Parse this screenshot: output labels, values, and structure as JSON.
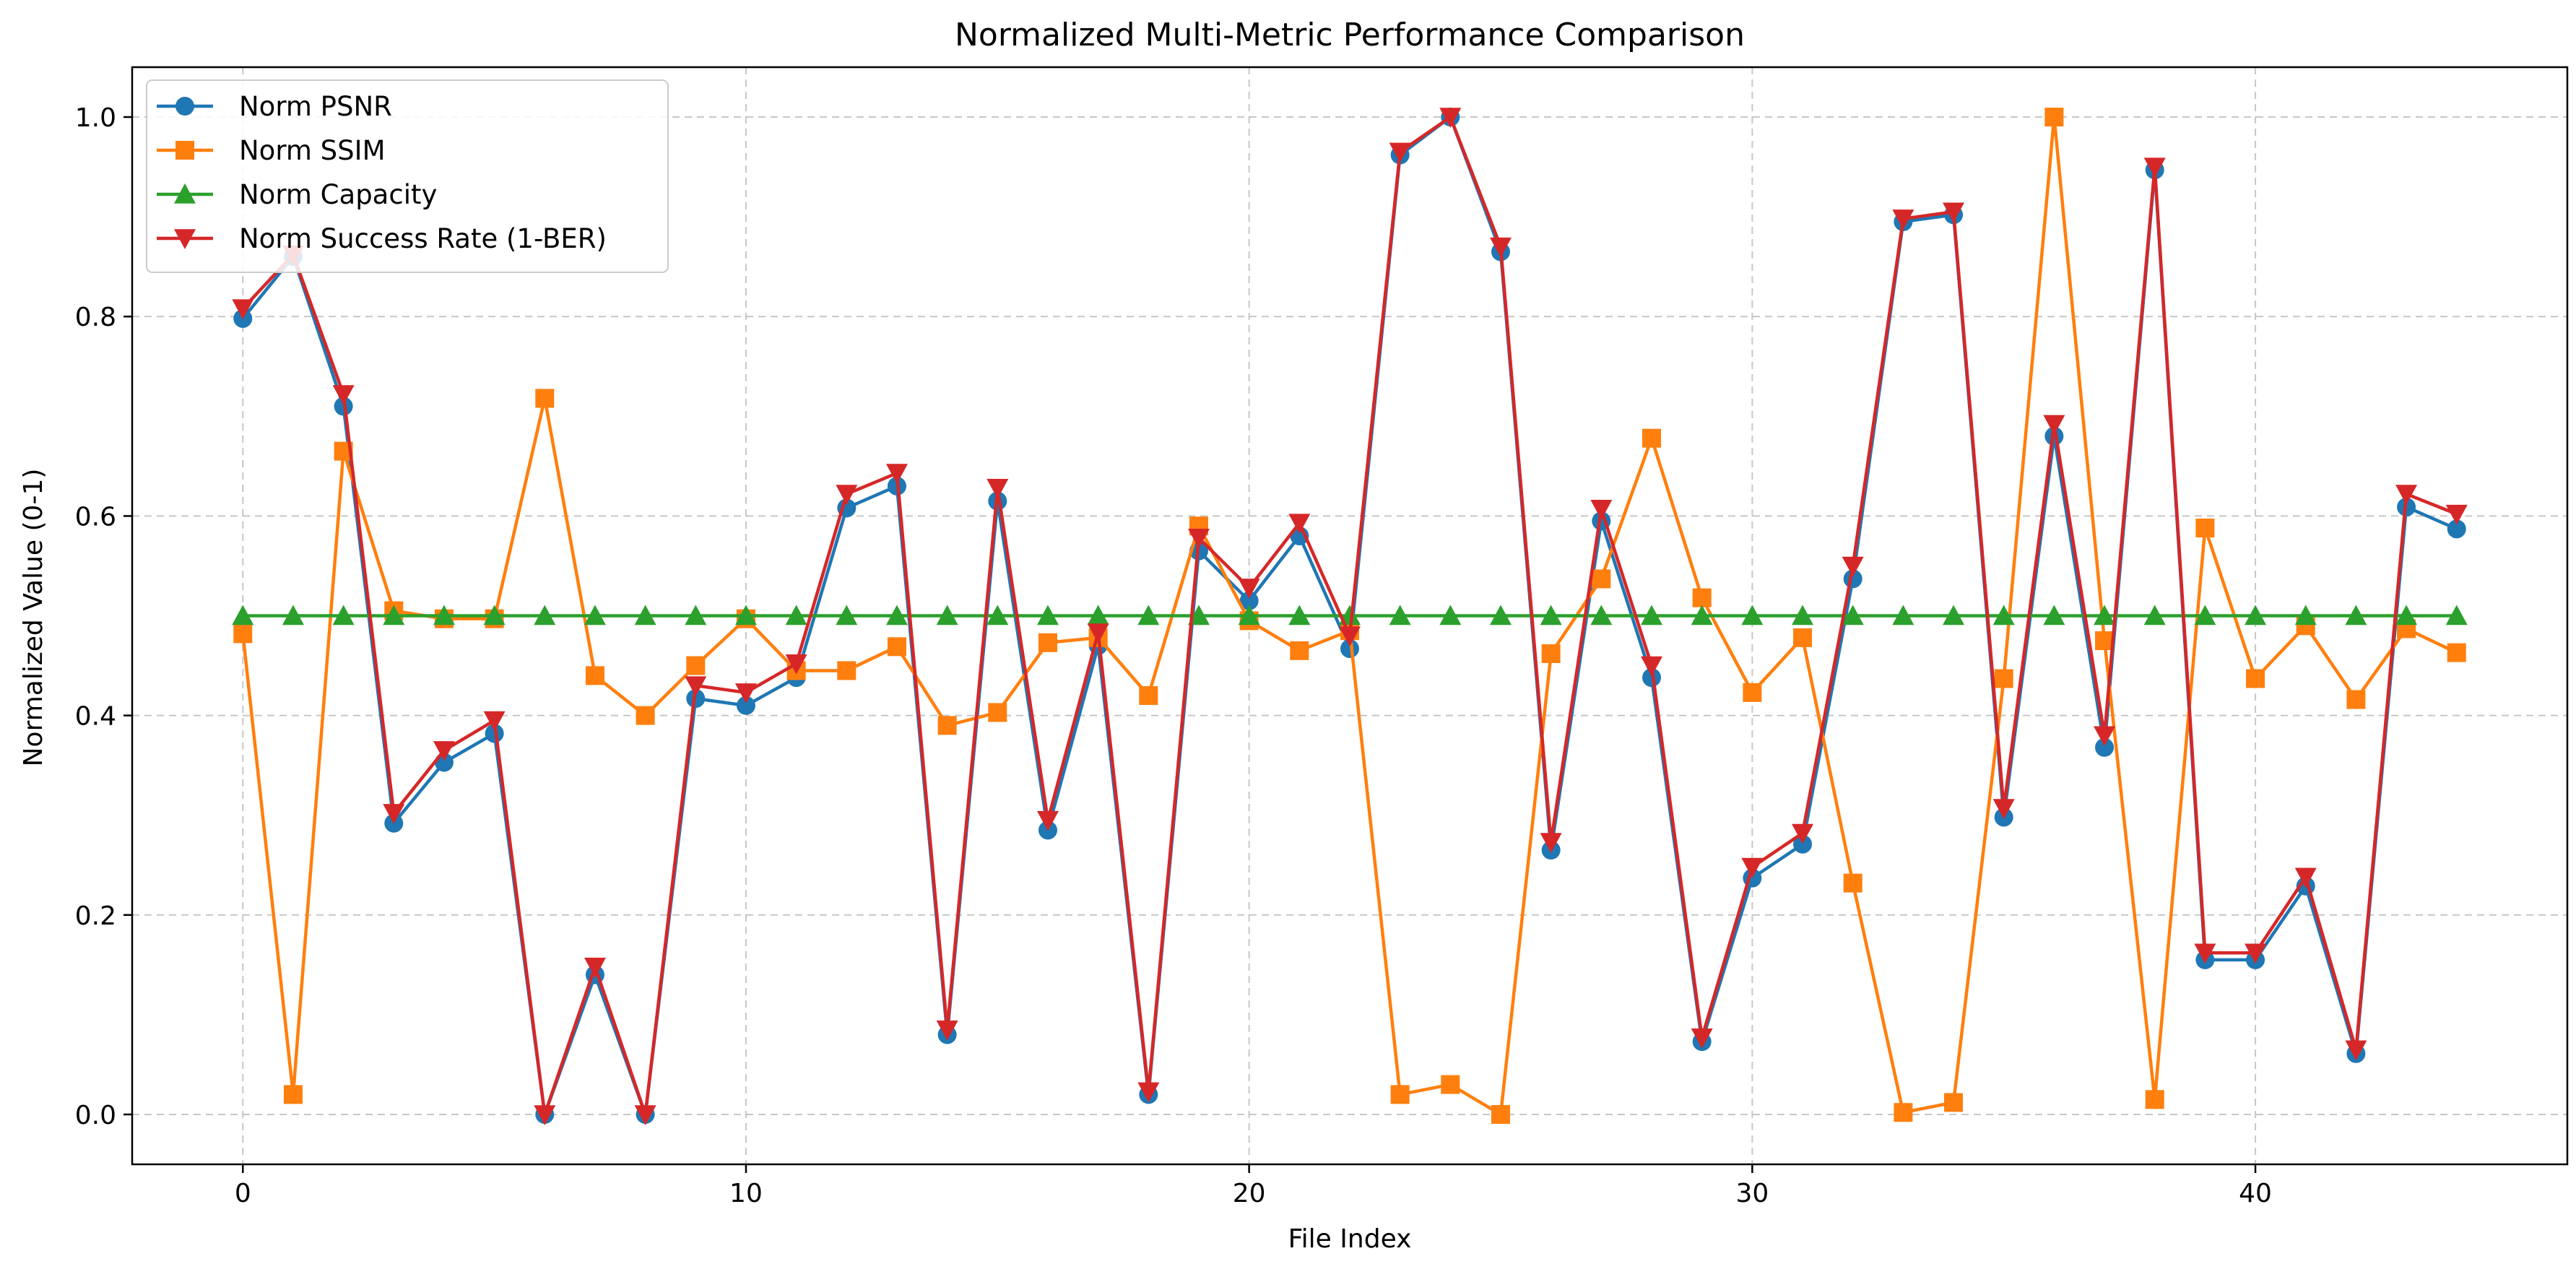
{
  "chart_data": {
    "type": "line",
    "title": "Normalized Multi-Metric Performance Comparison",
    "xlabel": "File Index",
    "ylabel": "Normalized Value (0-1)",
    "xlim": [
      -2.2,
      46.2
    ],
    "ylim": [
      -0.05,
      1.05
    ],
    "xticks": [
      0,
      10,
      20,
      30,
      40
    ],
    "yticks": [
      0.0,
      0.2,
      0.4,
      0.6,
      0.8,
      1.0
    ],
    "xtick_labels": [
      "0",
      "10",
      "20",
      "30",
      "40"
    ],
    "ytick_labels": [
      "0.0",
      "0.2",
      "0.4",
      "0.6",
      "0.8",
      "1.0"
    ],
    "grid": true,
    "legend_position": "top-left",
    "x": [
      0,
      1,
      2,
      3,
      4,
      5,
      6,
      7,
      8,
      9,
      10,
      11,
      12,
      13,
      14,
      15,
      16,
      17,
      18,
      19,
      20,
      21,
      22,
      23,
      24,
      25,
      26,
      27,
      28,
      29,
      30,
      31,
      32,
      33,
      34,
      35,
      36,
      37,
      38,
      39,
      40,
      41,
      42,
      43,
      44
    ],
    "series": [
      {
        "name": "Norm PSNR",
        "color": "#1f77b4",
        "marker": "circle",
        "values": [
          0.798,
          0.86,
          0.71,
          0.292,
          0.353,
          0.382,
          0.0,
          0.14,
          0.0,
          0.417,
          0.41,
          0.438,
          0.608,
          0.63,
          0.08,
          0.615,
          0.285,
          0.47,
          0.02,
          0.565,
          0.515,
          0.58,
          0.467,
          0.962,
          1.0,
          0.865,
          0.265,
          0.595,
          0.438,
          0.073,
          0.237,
          0.271,
          0.537,
          0.895,
          0.902,
          0.298,
          0.68,
          0.368,
          0.947,
          0.155,
          0.155,
          0.229,
          0.061,
          0.609,
          0.587
        ]
      },
      {
        "name": "Norm SSIM",
        "color": "#ff7f0e",
        "marker": "square",
        "values": [
          0.482,
          0.02,
          0.665,
          0.505,
          0.497,
          0.497,
          0.718,
          0.44,
          0.4,
          0.45,
          0.497,
          0.445,
          0.445,
          0.469,
          0.39,
          0.403,
          0.473,
          0.478,
          0.42,
          0.59,
          0.495,
          0.465,
          0.485,
          0.02,
          0.03,
          0.0,
          0.462,
          0.537,
          0.678,
          0.518,
          0.423,
          0.478,
          0.232,
          0.002,
          0.012,
          0.437,
          1.0,
          0.475,
          0.015,
          0.588,
          0.437,
          0.49,
          0.416,
          0.487,
          0.463
        ]
      },
      {
        "name": "Norm Capacity",
        "color": "#2ca02c",
        "marker": "triangle-up",
        "values": [
          0.5,
          0.5,
          0.5,
          0.5,
          0.5,
          0.5,
          0.5,
          0.5,
          0.5,
          0.5,
          0.5,
          0.5,
          0.5,
          0.5,
          0.5,
          0.5,
          0.5,
          0.5,
          0.5,
          0.5,
          0.5,
          0.5,
          0.5,
          0.5,
          0.5,
          0.5,
          0.5,
          0.5,
          0.5,
          0.5,
          0.5,
          0.5,
          0.5,
          0.5,
          0.5,
          0.5,
          0.5,
          0.5,
          0.5,
          0.5,
          0.5,
          0.5,
          0.5,
          0.5,
          0.5
        ]
      },
      {
        "name": "Norm Success Rate (1-BER)",
        "color": "#d62728",
        "marker": "triangle-down",
        "values": [
          0.808,
          0.862,
          0.722,
          0.302,
          0.365,
          0.395,
          0.0,
          0.148,
          0.0,
          0.43,
          0.423,
          0.452,
          0.622,
          0.643,
          0.085,
          0.628,
          0.295,
          0.483,
          0.023,
          0.578,
          0.528,
          0.593,
          0.48,
          0.965,
          1.0,
          0.87,
          0.273,
          0.607,
          0.45,
          0.077,
          0.248,
          0.282,
          0.55,
          0.898,
          0.905,
          0.307,
          0.692,
          0.38,
          0.95,
          0.162,
          0.162,
          0.238,
          0.065,
          0.622,
          0.602
        ]
      }
    ]
  }
}
